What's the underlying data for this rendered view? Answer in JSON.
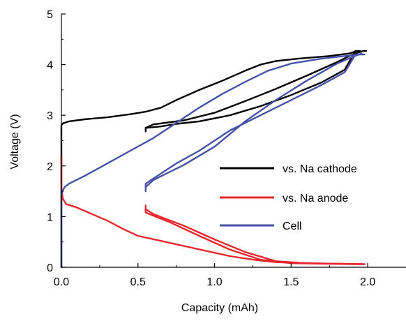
{
  "chart_data": {
    "type": "line",
    "title": "",
    "xlabel": "Capacity (mAh)",
    "ylabel": "Voltage (V)",
    "xlim": [
      0.0,
      2.25
    ],
    "ylim": [
      0,
      5
    ],
    "x_ticks": [
      "0.0",
      "0.5",
      "1.0",
      "1.5",
      "2.0"
    ],
    "y_ticks": [
      "0",
      "1",
      "2",
      "3",
      "4",
      "5"
    ],
    "grid": false,
    "legend_position": "right",
    "series": [
      {
        "name": "vs. Na cathode",
        "color": "#000000",
        "segments": [
          [
            [
              0.0,
              0.0
            ],
            [
              0.0,
              2.8
            ],
            [
              0.01,
              2.84
            ],
            [
              0.05,
              2.88
            ],
            [
              0.15,
              2.92
            ],
            [
              0.3,
              2.96
            ],
            [
              0.45,
              3.02
            ],
            [
              0.55,
              3.07
            ],
            [
              0.65,
              3.15
            ],
            [
              0.75,
              3.3
            ],
            [
              0.9,
              3.5
            ],
            [
              1.05,
              3.68
            ],
            [
              1.2,
              3.88
            ],
            [
              1.3,
              4.0
            ],
            [
              1.4,
              4.07
            ],
            [
              1.55,
              4.12
            ],
            [
              1.75,
              4.17
            ],
            [
              1.88,
              4.22
            ],
            [
              1.93,
              4.27
            ],
            [
              1.95,
              4.27
            ]
          ],
          [
            [
              1.92,
              4.27
            ],
            [
              1.85,
              3.9
            ],
            [
              1.7,
              3.65
            ],
            [
              1.5,
              3.4
            ],
            [
              1.3,
              3.18
            ],
            [
              1.1,
              3.0
            ],
            [
              0.9,
              2.88
            ],
            [
              0.75,
              2.83
            ],
            [
              0.65,
              2.78
            ],
            [
              0.55,
              2.75
            ],
            [
              0.55,
              2.68
            ]
          ],
          [
            [
              0.55,
              2.75
            ],
            [
              0.6,
              2.82
            ],
            [
              0.8,
              2.9
            ],
            [
              1.0,
              3.05
            ],
            [
              1.2,
              3.28
            ],
            [
              1.4,
              3.52
            ],
            [
              1.6,
              3.78
            ],
            [
              1.8,
              4.05
            ],
            [
              1.9,
              4.2
            ],
            [
              1.97,
              4.27
            ],
            [
              1.99,
              4.27
            ]
          ]
        ]
      },
      {
        "name": "vs. Na anode",
        "color": "#e8262d",
        "segments": [
          [
            [
              0.0,
              2.2
            ],
            [
              0.0,
              1.55
            ],
            [
              0.01,
              1.35
            ],
            [
              0.03,
              1.25
            ],
            [
              0.1,
              1.18
            ],
            [
              0.2,
              1.05
            ],
            [
              0.3,
              0.92
            ],
            [
              0.4,
              0.76
            ],
            [
              0.5,
              0.62
            ],
            [
              0.65,
              0.52
            ],
            [
              0.8,
              0.42
            ],
            [
              0.95,
              0.32
            ],
            [
              1.1,
              0.22
            ],
            [
              1.25,
              0.15
            ],
            [
              1.4,
              0.1
            ],
            [
              1.6,
              0.08
            ],
            [
              1.8,
              0.07
            ],
            [
              1.98,
              0.06
            ]
          ],
          [
            [
              0.55,
              1.22
            ],
            [
              0.55,
              1.08
            ],
            [
              0.7,
              0.9
            ],
            [
              0.9,
              0.62
            ],
            [
              1.1,
              0.35
            ],
            [
              1.3,
              0.15
            ],
            [
              1.5,
              0.08
            ],
            [
              1.7,
              0.07
            ],
            [
              1.95,
              0.06
            ]
          ],
          [
            [
              0.55,
              1.15
            ],
            [
              0.6,
              1.05
            ],
            [
              0.8,
              0.82
            ],
            [
              1.0,
              0.55
            ],
            [
              1.2,
              0.3
            ],
            [
              1.4,
              0.12
            ],
            [
              1.6,
              0.08
            ],
            [
              1.98,
              0.06
            ]
          ]
        ]
      },
      {
        "name": "Cell",
        "color": "#4552a6",
        "segments": [
          [
            [
              0.0,
              0.0
            ],
            [
              0.0,
              1.45
            ],
            [
              0.02,
              1.58
            ],
            [
              0.05,
              1.65
            ],
            [
              0.15,
              1.8
            ],
            [
              0.3,
              2.05
            ],
            [
              0.45,
              2.3
            ],
            [
              0.6,
              2.55
            ],
            [
              0.75,
              2.85
            ],
            [
              0.9,
              3.15
            ],
            [
              1.05,
              3.42
            ],
            [
              1.2,
              3.66
            ],
            [
              1.35,
              3.88
            ],
            [
              1.5,
              4.02
            ],
            [
              1.7,
              4.12
            ],
            [
              1.85,
              4.17
            ],
            [
              1.95,
              4.2
            ],
            [
              1.98,
              4.2
            ]
          ],
          [
            [
              1.92,
              4.2
            ],
            [
              1.85,
              3.85
            ],
            [
              1.7,
              3.6
            ],
            [
              1.5,
              3.3
            ],
            [
              1.3,
              3.0
            ],
            [
              1.1,
              2.7
            ],
            [
              0.9,
              2.3
            ],
            [
              0.75,
              2.05
            ],
            [
              0.65,
              1.85
            ],
            [
              0.55,
              1.65
            ],
            [
              0.55,
              1.5
            ]
          ],
          [
            [
              0.55,
              1.58
            ],
            [
              0.6,
              1.72
            ],
            [
              0.8,
              2.02
            ],
            [
              1.0,
              2.38
            ],
            [
              1.2,
              2.88
            ],
            [
              1.4,
              3.3
            ],
            [
              1.6,
              3.68
            ],
            [
              1.8,
              4.02
            ],
            [
              1.9,
              4.15
            ],
            [
              1.96,
              4.22
            ]
          ]
        ]
      }
    ]
  }
}
